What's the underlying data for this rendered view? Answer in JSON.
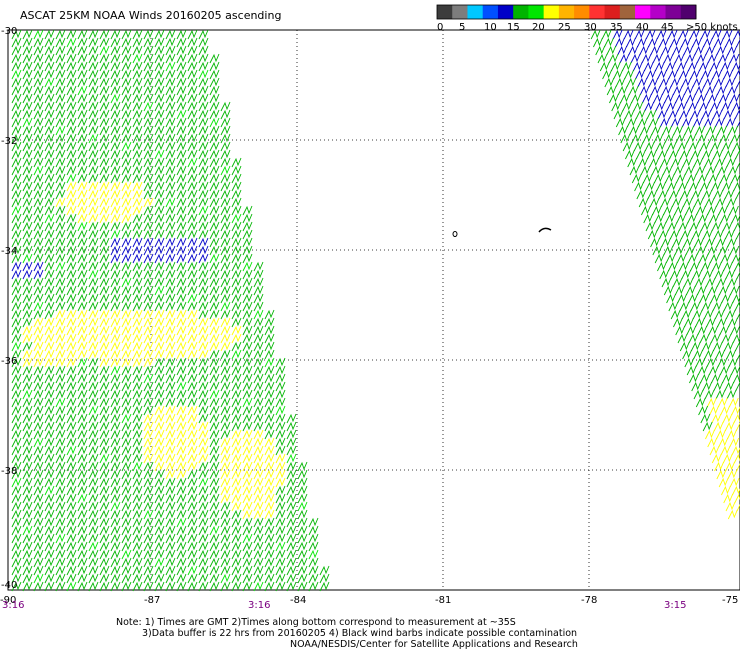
{
  "title": "ASCAT 25KM NOAA Winds 20160205 ascending",
  "colorbar": {
    "colors": [
      "#3c3c3c",
      "#7d7d7d",
      "#00c8ff",
      "#0050ff",
      "#0000c8",
      "#00b400",
      "#00e600",
      "#ffff00",
      "#ffb400",
      "#ff8c00",
      "#ff3232",
      "#dc1e1e",
      "#a0643c",
      "#ff00ff",
      "#b400c8",
      "#7d0096",
      "#50006e"
    ],
    "labels": [
      "0",
      "5",
      "10",
      "15",
      "20",
      "25",
      "30",
      "35",
      "40",
      "45",
      ">50 knots"
    ]
  },
  "axes": {
    "lat_labels": [
      "-30",
      "-32",
      "-34",
      "-36",
      "-38",
      "-40"
    ],
    "lon_labels": [
      "-90",
      "-87",
      "-84",
      "-81",
      "-78",
      "-75"
    ]
  },
  "pass_times": [
    "3:16",
    "3:16",
    "3:15"
  ],
  "notes": [
    "Note: 1) Times are GMT 2)Times along bottom correspond to measurement at ~35S",
    "3)Data buffer is 22 hrs from 20160205 4) Black wind barbs indicate possible contamination",
    "NOAA/NESDIS/Center for Satellite Applications and Research"
  ],
  "legend_colors": {
    "light": "#ffff00",
    "moderate": "#00b400",
    "strong": "#0000c8"
  }
}
